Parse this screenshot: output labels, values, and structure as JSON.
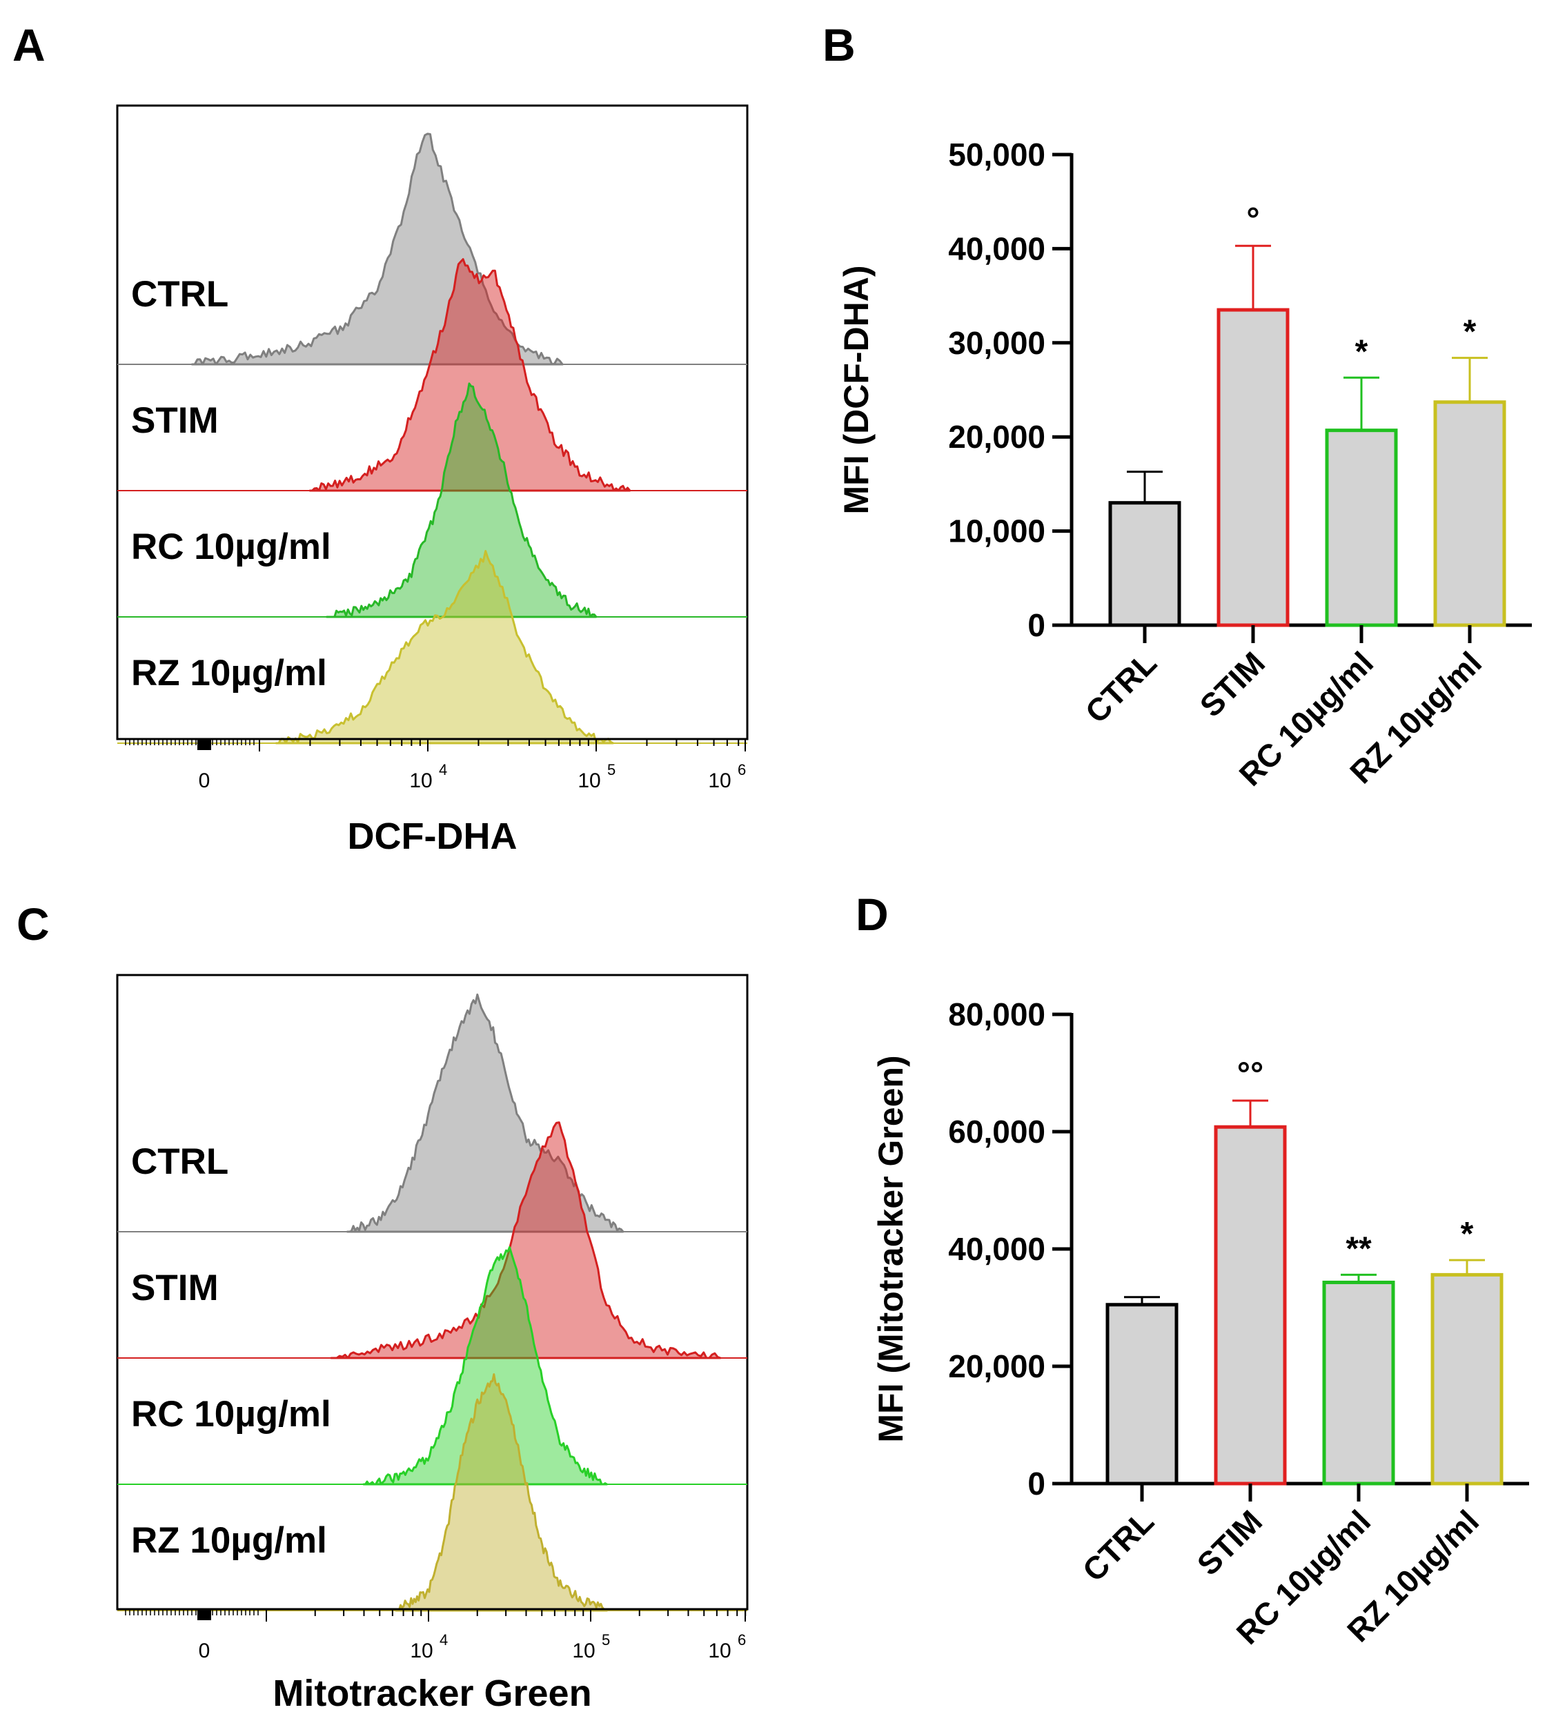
{
  "panels": {
    "a": "A",
    "b": "B",
    "c": "C",
    "d": "D"
  },
  "chart_data": [
    {
      "panel": "A",
      "type": "area",
      "description": "flow cytometry histogram overlay (offset)",
      "xlabel": "DCF-DHA",
      "x_scale": "log",
      "x_ticks": [
        "0",
        "10^4",
        "10^5",
        "10^6"
      ],
      "tick_base": "10",
      "tick_exps": [
        "4",
        "5",
        "6"
      ],
      "series": [
        {
          "name": "CTRL",
          "color": "#808080",
          "peak_log10": 3.98,
          "peak_height": 1.0,
          "profile": [
            [
              2.6,
              0.0
            ],
            [
              3.0,
              0.04
            ],
            [
              3.3,
              0.09
            ],
            [
              3.5,
              0.16
            ],
            [
              3.7,
              0.33
            ],
            [
              3.85,
              0.62
            ],
            [
              3.95,
              0.92
            ],
            [
              4.0,
              1.0
            ],
            [
              4.1,
              0.78
            ],
            [
              4.25,
              0.48
            ],
            [
              4.4,
              0.22
            ],
            [
              4.55,
              0.08
            ],
            [
              4.7,
              0.02
            ],
            [
              4.8,
              0.0
            ]
          ]
        },
        {
          "name": "STIM",
          "color": "#d42020",
          "peak_log10": 4.2,
          "peak_height": 1.0,
          "profile": [
            [
              3.3,
              0.0
            ],
            [
              3.6,
              0.06
            ],
            [
              3.8,
              0.15
            ],
            [
              3.95,
              0.4
            ],
            [
              4.1,
              0.72
            ],
            [
              4.2,
              1.0
            ],
            [
              4.3,
              0.9
            ],
            [
              4.4,
              0.92
            ],
            [
              4.5,
              0.7
            ],
            [
              4.6,
              0.45
            ],
            [
              4.75,
              0.22
            ],
            [
              4.9,
              0.08
            ],
            [
              5.1,
              0.02
            ],
            [
              5.2,
              0.0
            ]
          ]
        },
        {
          "name": "RC 10µg/ml",
          "color": "#28b828",
          "peak_log10": 4.25,
          "peak_height": 1.0,
          "profile": [
            [
              3.4,
              0.0
            ],
            [
              3.7,
              0.05
            ],
            [
              3.9,
              0.18
            ],
            [
              4.05,
              0.45
            ],
            [
              4.15,
              0.78
            ],
            [
              4.25,
              1.0
            ],
            [
              4.35,
              0.85
            ],
            [
              4.45,
              0.65
            ],
            [
              4.55,
              0.38
            ],
            [
              4.7,
              0.15
            ],
            [
              4.85,
              0.05
            ],
            [
              5.0,
              0.0
            ]
          ]
        },
        {
          "name": "RZ 10µg/ml",
          "color": "#c8c030",
          "peak_log10": 4.35,
          "peak_height": 0.9,
          "profile": [
            [
              3.1,
              0.0
            ],
            [
              3.4,
              0.05
            ],
            [
              3.6,
              0.15
            ],
            [
              3.8,
              0.38
            ],
            [
              3.95,
              0.55
            ],
            [
              4.1,
              0.62
            ],
            [
              4.25,
              0.78
            ],
            [
              4.35,
              0.9
            ],
            [
              4.45,
              0.72
            ],
            [
              4.55,
              0.48
            ],
            [
              4.7,
              0.26
            ],
            [
              4.85,
              0.1
            ],
            [
              5.0,
              0.02
            ],
            [
              5.1,
              0.0
            ]
          ]
        }
      ]
    },
    {
      "panel": "B",
      "type": "bar",
      "title": "",
      "xlabel": "",
      "ylabel": "MFI (DCF-DHA)",
      "ylim": [
        0,
        50000
      ],
      "yticks": [
        "0",
        "10,000",
        "20,000",
        "30,000",
        "40,000",
        "50,000"
      ],
      "categories": [
        "CTRL",
        "STIM",
        "RC 10µg/ml",
        "RZ 10µg/ml"
      ],
      "values": [
        13000,
        33500,
        20700,
        23700
      ],
      "errors": [
        3300,
        6800,
        5600,
        4700
      ],
      "colors": [
        "#000000",
        "#e02020",
        "#20c020",
        "#c8c020"
      ],
      "significance": [
        "",
        "°",
        "*",
        "*"
      ]
    },
    {
      "panel": "C",
      "type": "area",
      "description": "flow cytometry histogram overlay (offset)",
      "xlabel": "Mitotracker Green",
      "x_scale": "log",
      "x_ticks": [
        "0",
        "10^4",
        "10^5",
        "10^6"
      ],
      "tick_base": "10",
      "tick_exps": [
        "4",
        "5",
        "6"
      ],
      "series": [
        {
          "name": "CTRL",
          "color": "#808080",
          "peak_log10": 4.3,
          "peak_height": 1.0,
          "profile": [
            [
              3.5,
              0.0
            ],
            [
              3.7,
              0.05
            ],
            [
              3.85,
              0.2
            ],
            [
              4.0,
              0.5
            ],
            [
              4.1,
              0.72
            ],
            [
              4.2,
              0.88
            ],
            [
              4.3,
              1.0
            ],
            [
              4.4,
              0.85
            ],
            [
              4.5,
              0.62
            ],
            [
              4.6,
              0.4
            ],
            [
              4.7,
              0.35
            ],
            [
              4.8,
              0.3
            ],
            [
              4.9,
              0.2
            ],
            [
              5.0,
              0.1
            ],
            [
              5.1,
              0.04
            ],
            [
              5.2,
              0.0
            ]
          ]
        },
        {
          "name": "STIM",
          "color": "#d42020",
          "peak_log10": 4.85,
          "peak_height": 1.0,
          "profile": [
            [
              3.4,
              0.0
            ],
            [
              3.6,
              0.03
            ],
            [
              3.9,
              0.06
            ],
            [
              4.1,
              0.1
            ],
            [
              4.3,
              0.18
            ],
            [
              4.45,
              0.35
            ],
            [
              4.55,
              0.6
            ],
            [
              4.7,
              0.9
            ],
            [
              4.8,
              1.0
            ],
            [
              4.9,
              0.78
            ],
            [
              5.0,
              0.48
            ],
            [
              5.1,
              0.22
            ],
            [
              5.25,
              0.08
            ],
            [
              5.4,
              0.04
            ],
            [
              5.6,
              0.02
            ],
            [
              5.8,
              0.0
            ]
          ]
        },
        {
          "name": "RC 10µg/ml",
          "color": "#28d028",
          "peak_log10": 4.5,
          "peak_height": 1.0,
          "profile": [
            [
              3.6,
              0.0
            ],
            [
              3.85,
              0.04
            ],
            [
              4.0,
              0.12
            ],
            [
              4.15,
              0.35
            ],
            [
              4.3,
              0.7
            ],
            [
              4.4,
              0.95
            ],
            [
              4.5,
              1.0
            ],
            [
              4.6,
              0.78
            ],
            [
              4.7,
              0.45
            ],
            [
              4.8,
              0.2
            ],
            [
              4.95,
              0.06
            ],
            [
              5.1,
              0.0
            ]
          ]
        },
        {
          "name": "RZ 10µg/ml",
          "color": "#c0b030",
          "peak_log10": 4.4,
          "peak_height": 1.0,
          "profile": [
            [
              3.8,
              0.0
            ],
            [
              4.0,
              0.08
            ],
            [
              4.1,
              0.3
            ],
            [
              4.2,
              0.65
            ],
            [
              4.3,
              0.88
            ],
            [
              4.4,
              1.0
            ],
            [
              4.5,
              0.85
            ],
            [
              4.6,
              0.55
            ],
            [
              4.7,
              0.28
            ],
            [
              4.8,
              0.12
            ],
            [
              4.95,
              0.04
            ],
            [
              5.1,
              0.0
            ]
          ]
        }
      ]
    },
    {
      "panel": "D",
      "type": "bar",
      "title": "",
      "xlabel": "",
      "ylabel": "MFI (Mitotracker Green)",
      "ylim": [
        0,
        80000
      ],
      "yticks": [
        "0",
        "20,000",
        "40,000",
        "60,000",
        "80,000"
      ],
      "categories": [
        "CTRL",
        "STIM",
        "RC 10µg/ml",
        "RZ 10µg/ml"
      ],
      "values": [
        30500,
        60800,
        34300,
        35600
      ],
      "errors": [
        1300,
        4500,
        1300,
        2500
      ],
      "colors": [
        "#000000",
        "#e02020",
        "#20c020",
        "#c8c020"
      ],
      "significance": [
        "",
        "°°",
        "**",
        "*"
      ]
    }
  ]
}
